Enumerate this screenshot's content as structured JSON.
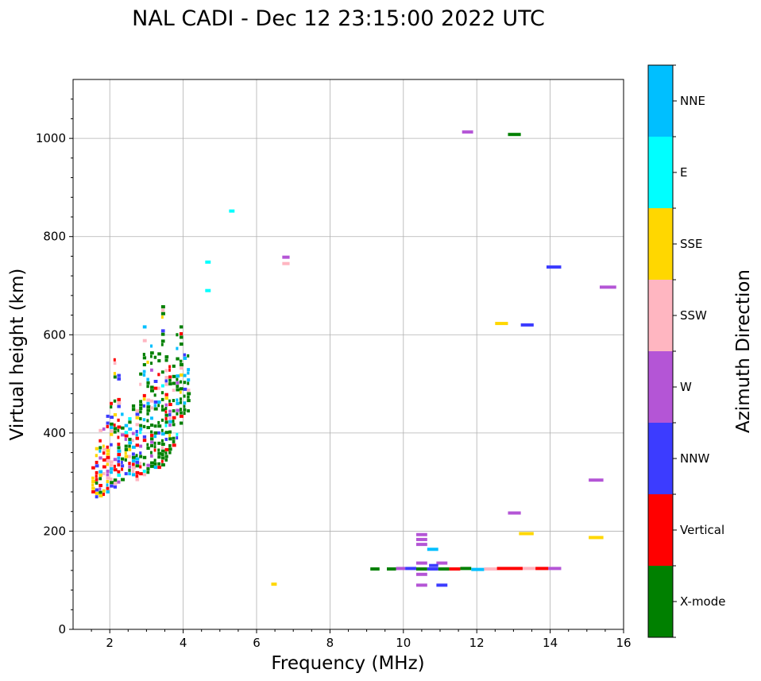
{
  "chart_data": {
    "type": "scatter",
    "title": "NAL CADI - Dec 12 23:15:00 2022 UTC",
    "xlabel": "Frequency (MHz)",
    "ylabel": "Virtual height (km)",
    "xlim": [
      1,
      16
    ],
    "ylim": [
      0,
      1120
    ],
    "xticks": [
      2,
      4,
      6,
      8,
      10,
      12,
      14,
      16
    ],
    "yticks": [
      0,
      200,
      400,
      600,
      800,
      1000
    ],
    "grid": true,
    "colorbar": {
      "label": "Azimuth Direction",
      "categories": [
        {
          "name": "X-mode",
          "color": "#008000"
        },
        {
          "name": "Vertical",
          "color": "#ff0000"
        },
        {
          "name": "NNW",
          "color": "#3c3cff"
        },
        {
          "name": "W",
          "color": "#b455d6"
        },
        {
          "name": "SSW",
          "color": "#ffb6c1"
        },
        {
          "name": "SSE",
          "color": "#ffd700"
        },
        {
          "name": "E",
          "color": "#00ffff"
        },
        {
          "name": "NNE",
          "color": "#00bfff"
        }
      ]
    },
    "segments": [
      {
        "f0": 11.6,
        "f1": 11.9,
        "h": 1013,
        "dir": "W"
      },
      {
        "f0": 12.85,
        "f1": 13.2,
        "h": 1008,
        "dir": "X-mode"
      },
      {
        "f0": 5.25,
        "f1": 5.4,
        "h": 852,
        "dir": "E"
      },
      {
        "f0": 6.7,
        "f1": 6.9,
        "h": 758,
        "dir": "W"
      },
      {
        "f0": 6.7,
        "f1": 6.9,
        "h": 745,
        "dir": "SSW"
      },
      {
        "f0": 4.6,
        "f1": 4.75,
        "h": 748,
        "dir": "E"
      },
      {
        "f0": 4.6,
        "f1": 4.75,
        "h": 690,
        "dir": "E"
      },
      {
        "f0": 13.9,
        "f1": 14.3,
        "h": 738,
        "dir": "NNW"
      },
      {
        "f0": 15.35,
        "f1": 15.8,
        "h": 697,
        "dir": "W"
      },
      {
        "f0": 12.5,
        "f1": 12.85,
        "h": 623,
        "dir": "SSE"
      },
      {
        "f0": 13.2,
        "f1": 13.55,
        "h": 620,
        "dir": "NNW"
      },
      {
        "f0": 15.05,
        "f1": 15.45,
        "h": 304,
        "dir": "W"
      },
      {
        "f0": 12.85,
        "f1": 13.2,
        "h": 237,
        "dir": "W"
      },
      {
        "f0": 13.15,
        "f1": 13.55,
        "h": 195,
        "dir": "SSE"
      },
      {
        "f0": 10.35,
        "f1": 10.65,
        "h": 193,
        "dir": "W"
      },
      {
        "f0": 10.35,
        "f1": 10.65,
        "h": 183,
        "dir": "W"
      },
      {
        "f0": 10.35,
        "f1": 10.65,
        "h": 173,
        "dir": "W"
      },
      {
        "f0": 15.05,
        "f1": 15.45,
        "h": 187,
        "dir": "SSE"
      },
      {
        "f0": 10.65,
        "f1": 10.95,
        "h": 163,
        "dir": "NNE"
      },
      {
        "f0": 10.35,
        "f1": 10.65,
        "h": 135,
        "dir": "W"
      },
      {
        "f0": 10.9,
        "f1": 11.2,
        "h": 135,
        "dir": "W"
      },
      {
        "f0": 10.35,
        "f1": 10.65,
        "h": 112,
        "dir": "W"
      },
      {
        "f0": 6.4,
        "f1": 6.55,
        "h": 92,
        "dir": "SSE"
      },
      {
        "f0": 10.35,
        "f1": 10.65,
        "h": 90,
        "dir": "W"
      },
      {
        "f0": 10.9,
        "f1": 11.2,
        "h": 90,
        "dir": "NNW"
      },
      {
        "f0": 9.1,
        "f1": 9.35,
        "h": 123,
        "dir": "X-mode"
      },
      {
        "f0": 9.55,
        "f1": 9.8,
        "h": 123,
        "dir": "X-mode"
      },
      {
        "f0": 9.8,
        "f1": 10.05,
        "h": 124,
        "dir": "W"
      },
      {
        "f0": 10.05,
        "f1": 10.35,
        "h": 124,
        "dir": "NNW"
      },
      {
        "f0": 10.35,
        "f1": 10.65,
        "h": 123,
        "dir": "X-mode"
      },
      {
        "f0": 10.65,
        "f1": 10.95,
        "h": 123,
        "dir": "NNW"
      },
      {
        "f0": 10.95,
        "f1": 11.25,
        "h": 123,
        "dir": "X-mode"
      },
      {
        "f0": 11.25,
        "f1": 11.55,
        "h": 123,
        "dir": "Vertical"
      },
      {
        "f0": 11.55,
        "f1": 11.85,
        "h": 124,
        "dir": "X-mode"
      },
      {
        "f0": 11.85,
        "f1": 12.2,
        "h": 122,
        "dir": "NNE"
      },
      {
        "f0": 12.2,
        "f1": 12.55,
        "h": 123,
        "dir": "SSW"
      },
      {
        "f0": 12.55,
        "f1": 13.25,
        "h": 124,
        "dir": "Vertical"
      },
      {
        "f0": 13.25,
        "f1": 13.6,
        "h": 124,
        "dir": "SSW"
      },
      {
        "f0": 13.6,
        "f1": 13.95,
        "h": 124,
        "dir": "Vertical"
      },
      {
        "f0": 13.95,
        "f1": 14.3,
        "h": 124,
        "dir": "W"
      },
      {
        "f0": 10.7,
        "f1": 10.95,
        "h": 130,
        "dir": "NNW"
      }
    ],
    "f_layer_cluster": {
      "description": "dense multi-direction echoes",
      "freq_range": [
        1.5,
        4.2
      ],
      "height_range": [
        270,
        700
      ],
      "bands": [
        {
          "f": 1.55,
          "hmin": 280,
          "hmax": 350
        },
        {
          "f": 1.65,
          "hmin": 270,
          "hmax": 380
        },
        {
          "f": 1.75,
          "hmin": 272,
          "hmax": 410
        },
        {
          "f": 1.85,
          "hmin": 275,
          "hmax": 430
        },
        {
          "f": 1.95,
          "hmin": 280,
          "hmax": 445
        },
        {
          "f": 2.05,
          "hmin": 285,
          "hmax": 470
        },
        {
          "f": 2.15,
          "hmin": 290,
          "hmax": 580
        },
        {
          "f": 2.25,
          "hmin": 300,
          "hmax": 520
        },
        {
          "f": 2.35,
          "hmin": 305,
          "hmax": 450
        },
        {
          "f": 2.45,
          "hmin": 310,
          "hmax": 440
        },
        {
          "f": 2.55,
          "hmin": 310,
          "hmax": 440
        },
        {
          "f": 2.65,
          "hmin": 315,
          "hmax": 460
        },
        {
          "f": 2.75,
          "hmin": 305,
          "hmax": 500
        },
        {
          "f": 2.85,
          "hmin": 310,
          "hmax": 520
        },
        {
          "f": 2.95,
          "hmin": 315,
          "hmax": 620
        },
        {
          "f": 3.05,
          "hmin": 320,
          "hmax": 560
        },
        {
          "f": 3.15,
          "hmin": 325,
          "hmax": 580
        },
        {
          "f": 3.25,
          "hmin": 330,
          "hmax": 560
        },
        {
          "f": 3.35,
          "hmin": 330,
          "hmax": 600
        },
        {
          "f": 3.45,
          "hmin": 335,
          "hmax": 700
        },
        {
          "f": 3.55,
          "hmin": 345,
          "hmax": 560
        },
        {
          "f": 3.65,
          "hmin": 360,
          "hmax": 570
        },
        {
          "f": 3.75,
          "hmin": 375,
          "hmax": 560
        },
        {
          "f": 3.85,
          "hmin": 390,
          "hmax": 600
        },
        {
          "f": 3.95,
          "hmin": 420,
          "hmax": 620
        },
        {
          "f": 4.05,
          "hmin": 440,
          "hmax": 605
        },
        {
          "f": 4.15,
          "hmin": 445,
          "hmax": 560
        }
      ]
    }
  }
}
